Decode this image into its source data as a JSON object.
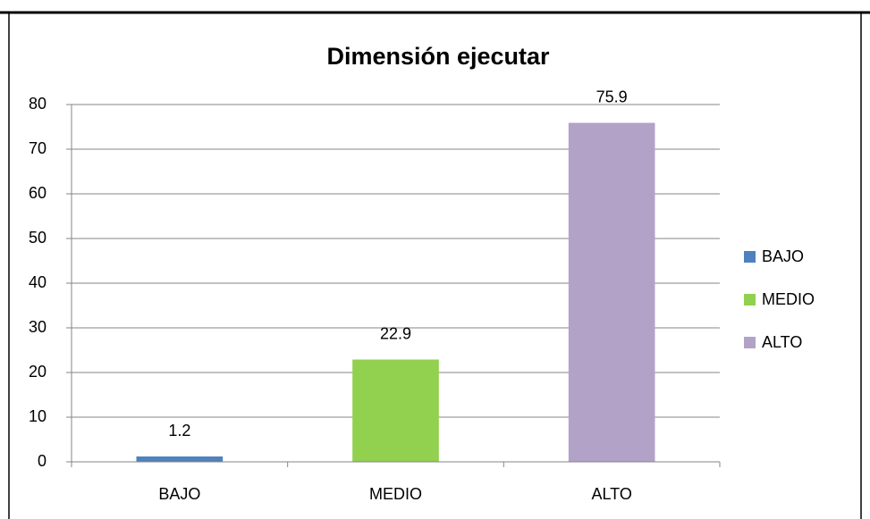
{
  "chart_data": {
    "type": "bar",
    "title": "Dimensión ejecutar",
    "categories": [
      "BAJO",
      "MEDIO",
      "ALTO"
    ],
    "values": [
      1.2,
      22.9,
      75.9
    ],
    "colors": [
      "#4f81bd",
      "#92d050",
      "#b3a2c7"
    ],
    "ylim": [
      0,
      80
    ],
    "yticks": [
      0,
      10,
      20,
      30,
      40,
      50,
      60,
      70,
      80
    ],
    "grid": true,
    "legend": "right"
  }
}
